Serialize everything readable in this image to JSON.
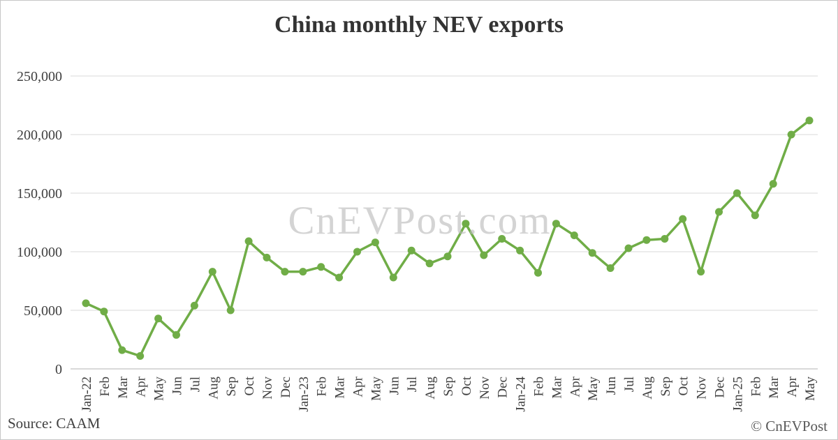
{
  "title": "China monthly NEV exports",
  "watermark": "CnEVPost.com",
  "footer": {
    "source": "Source: CAAM",
    "copyright": "© CnEVPost"
  },
  "colors": {
    "line": "#70AD47",
    "marker": "#70AD47",
    "grid": "#D9D9D9",
    "axis": "#B3B3B3",
    "tick_text": "#404040",
    "title_text": "#333333"
  },
  "chart_data": {
    "type": "line",
    "title": "China monthly NEV exports",
    "xlabel": "",
    "ylabel": "",
    "ylim": [
      0,
      250000
    ],
    "yticks": [
      0,
      50000,
      100000,
      150000,
      200000,
      250000
    ],
    "grid": true,
    "legend_position": "none",
    "marker_style": "circle",
    "categories": [
      "Jan-22",
      "Feb",
      "Mar",
      "Apr",
      "May",
      "Jun",
      "Jul",
      "Aug",
      "Sep",
      "Oct",
      "Nov",
      "Dec",
      "Jan-23",
      "Feb",
      "Mar",
      "Apr",
      "May",
      "Jun",
      "Jul",
      "Aug",
      "Sep",
      "Oct",
      "Nov",
      "Dec",
      "Jan-24",
      "Feb",
      "Mar",
      "Apr",
      "May",
      "Jun",
      "Jul",
      "Aug",
      "Sep",
      "Oct",
      "Nov",
      "Dec",
      "Jan-25",
      "Feb",
      "Mar",
      "Apr",
      "May"
    ],
    "series": [
      {
        "name": "China monthly NEV exports",
        "values": [
          56000,
          49000,
          16000,
          11000,
          43000,
          29000,
          54000,
          83000,
          50000,
          109000,
          95000,
          83000,
          83000,
          87000,
          78000,
          100000,
          108000,
          78000,
          101000,
          90000,
          96000,
          124000,
          97000,
          111000,
          101000,
          82000,
          124000,
          114000,
          99000,
          86000,
          103000,
          110000,
          111000,
          128000,
          83000,
          134000,
          150000,
          131000,
          158000,
          200000,
          212000
        ]
      }
    ]
  }
}
